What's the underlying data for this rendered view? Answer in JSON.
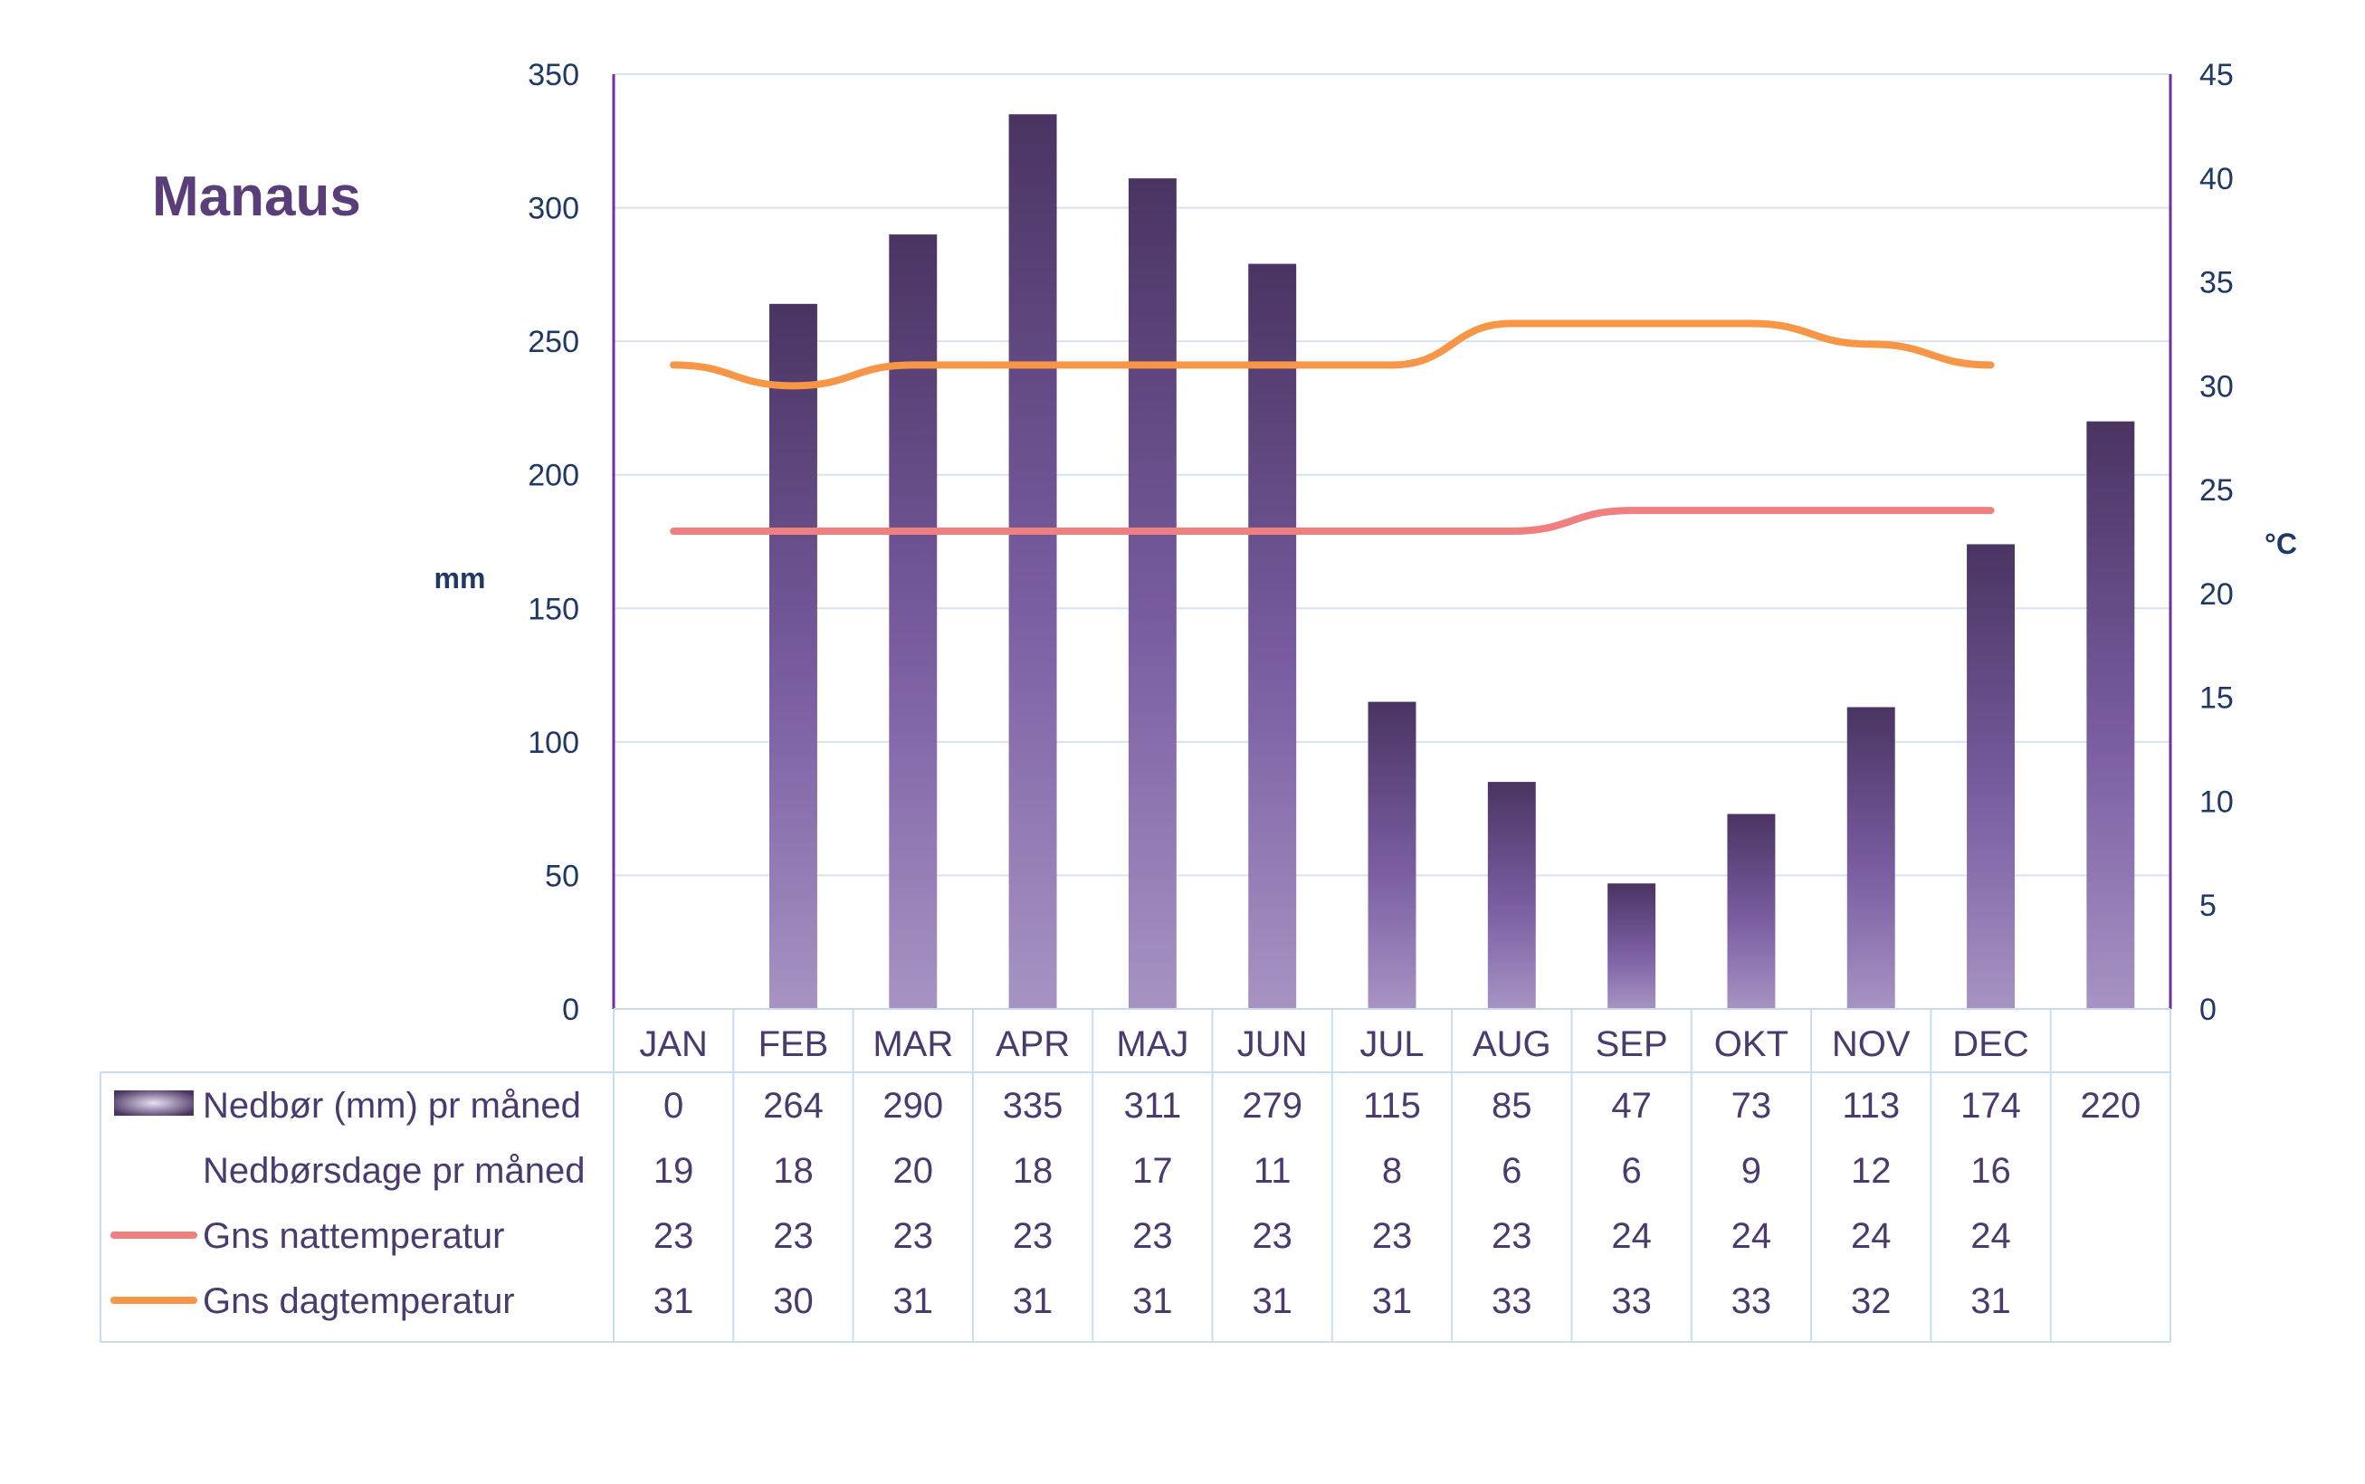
{
  "chart_data": {
    "type": "bar",
    "title": "Manaus",
    "ylabel_left": "mm",
    "ylabel_right": "°C",
    "ylim_left": [
      0,
      350
    ],
    "ylim_right": [
      0,
      45
    ],
    "yticks_left": [
      "0",
      "50",
      "100",
      "150",
      "200",
      "250",
      "300",
      "350"
    ],
    "yticks_right": [
      "0",
      "5",
      "10",
      "15",
      "20",
      "25",
      "30",
      "35",
      "40",
      "45"
    ],
    "grid": true,
    "legend": "table-below",
    "categories": [
      "JAN",
      "FEB",
      "MAR",
      "APR",
      "MAJ",
      "JUN",
      "JUL",
      "AUG",
      "SEP",
      "OKT",
      "NOV",
      "DEC",
      ""
    ],
    "series": [
      {
        "name": "Nedbør (mm) pr måned",
        "kind": "bar",
        "axis": "left",
        "color": "#5a4380",
        "values": [
          0,
          264,
          290,
          335,
          311,
          279,
          115,
          85,
          47,
          73,
          113,
          174,
          220
        ]
      },
      {
        "name": "Nedbørsdage pr måned",
        "kind": "table",
        "values": [
          19,
          18,
          20,
          18,
          17,
          11,
          8,
          6,
          6,
          9,
          12,
          16,
          null
        ]
      },
      {
        "name": "Gns nattemperatur",
        "kind": "line",
        "axis": "right",
        "color": "#f08080",
        "values": [
          23,
          23,
          23,
          23,
          23,
          23,
          23,
          23,
          24,
          24,
          24,
          24,
          null
        ]
      },
      {
        "name": "Gns dagtemperatur",
        "kind": "line",
        "axis": "right",
        "color": "#f79646",
        "values": [
          31,
          30,
          31,
          31,
          31,
          31,
          31,
          33,
          33,
          33,
          32,
          31,
          null
        ]
      }
    ]
  }
}
